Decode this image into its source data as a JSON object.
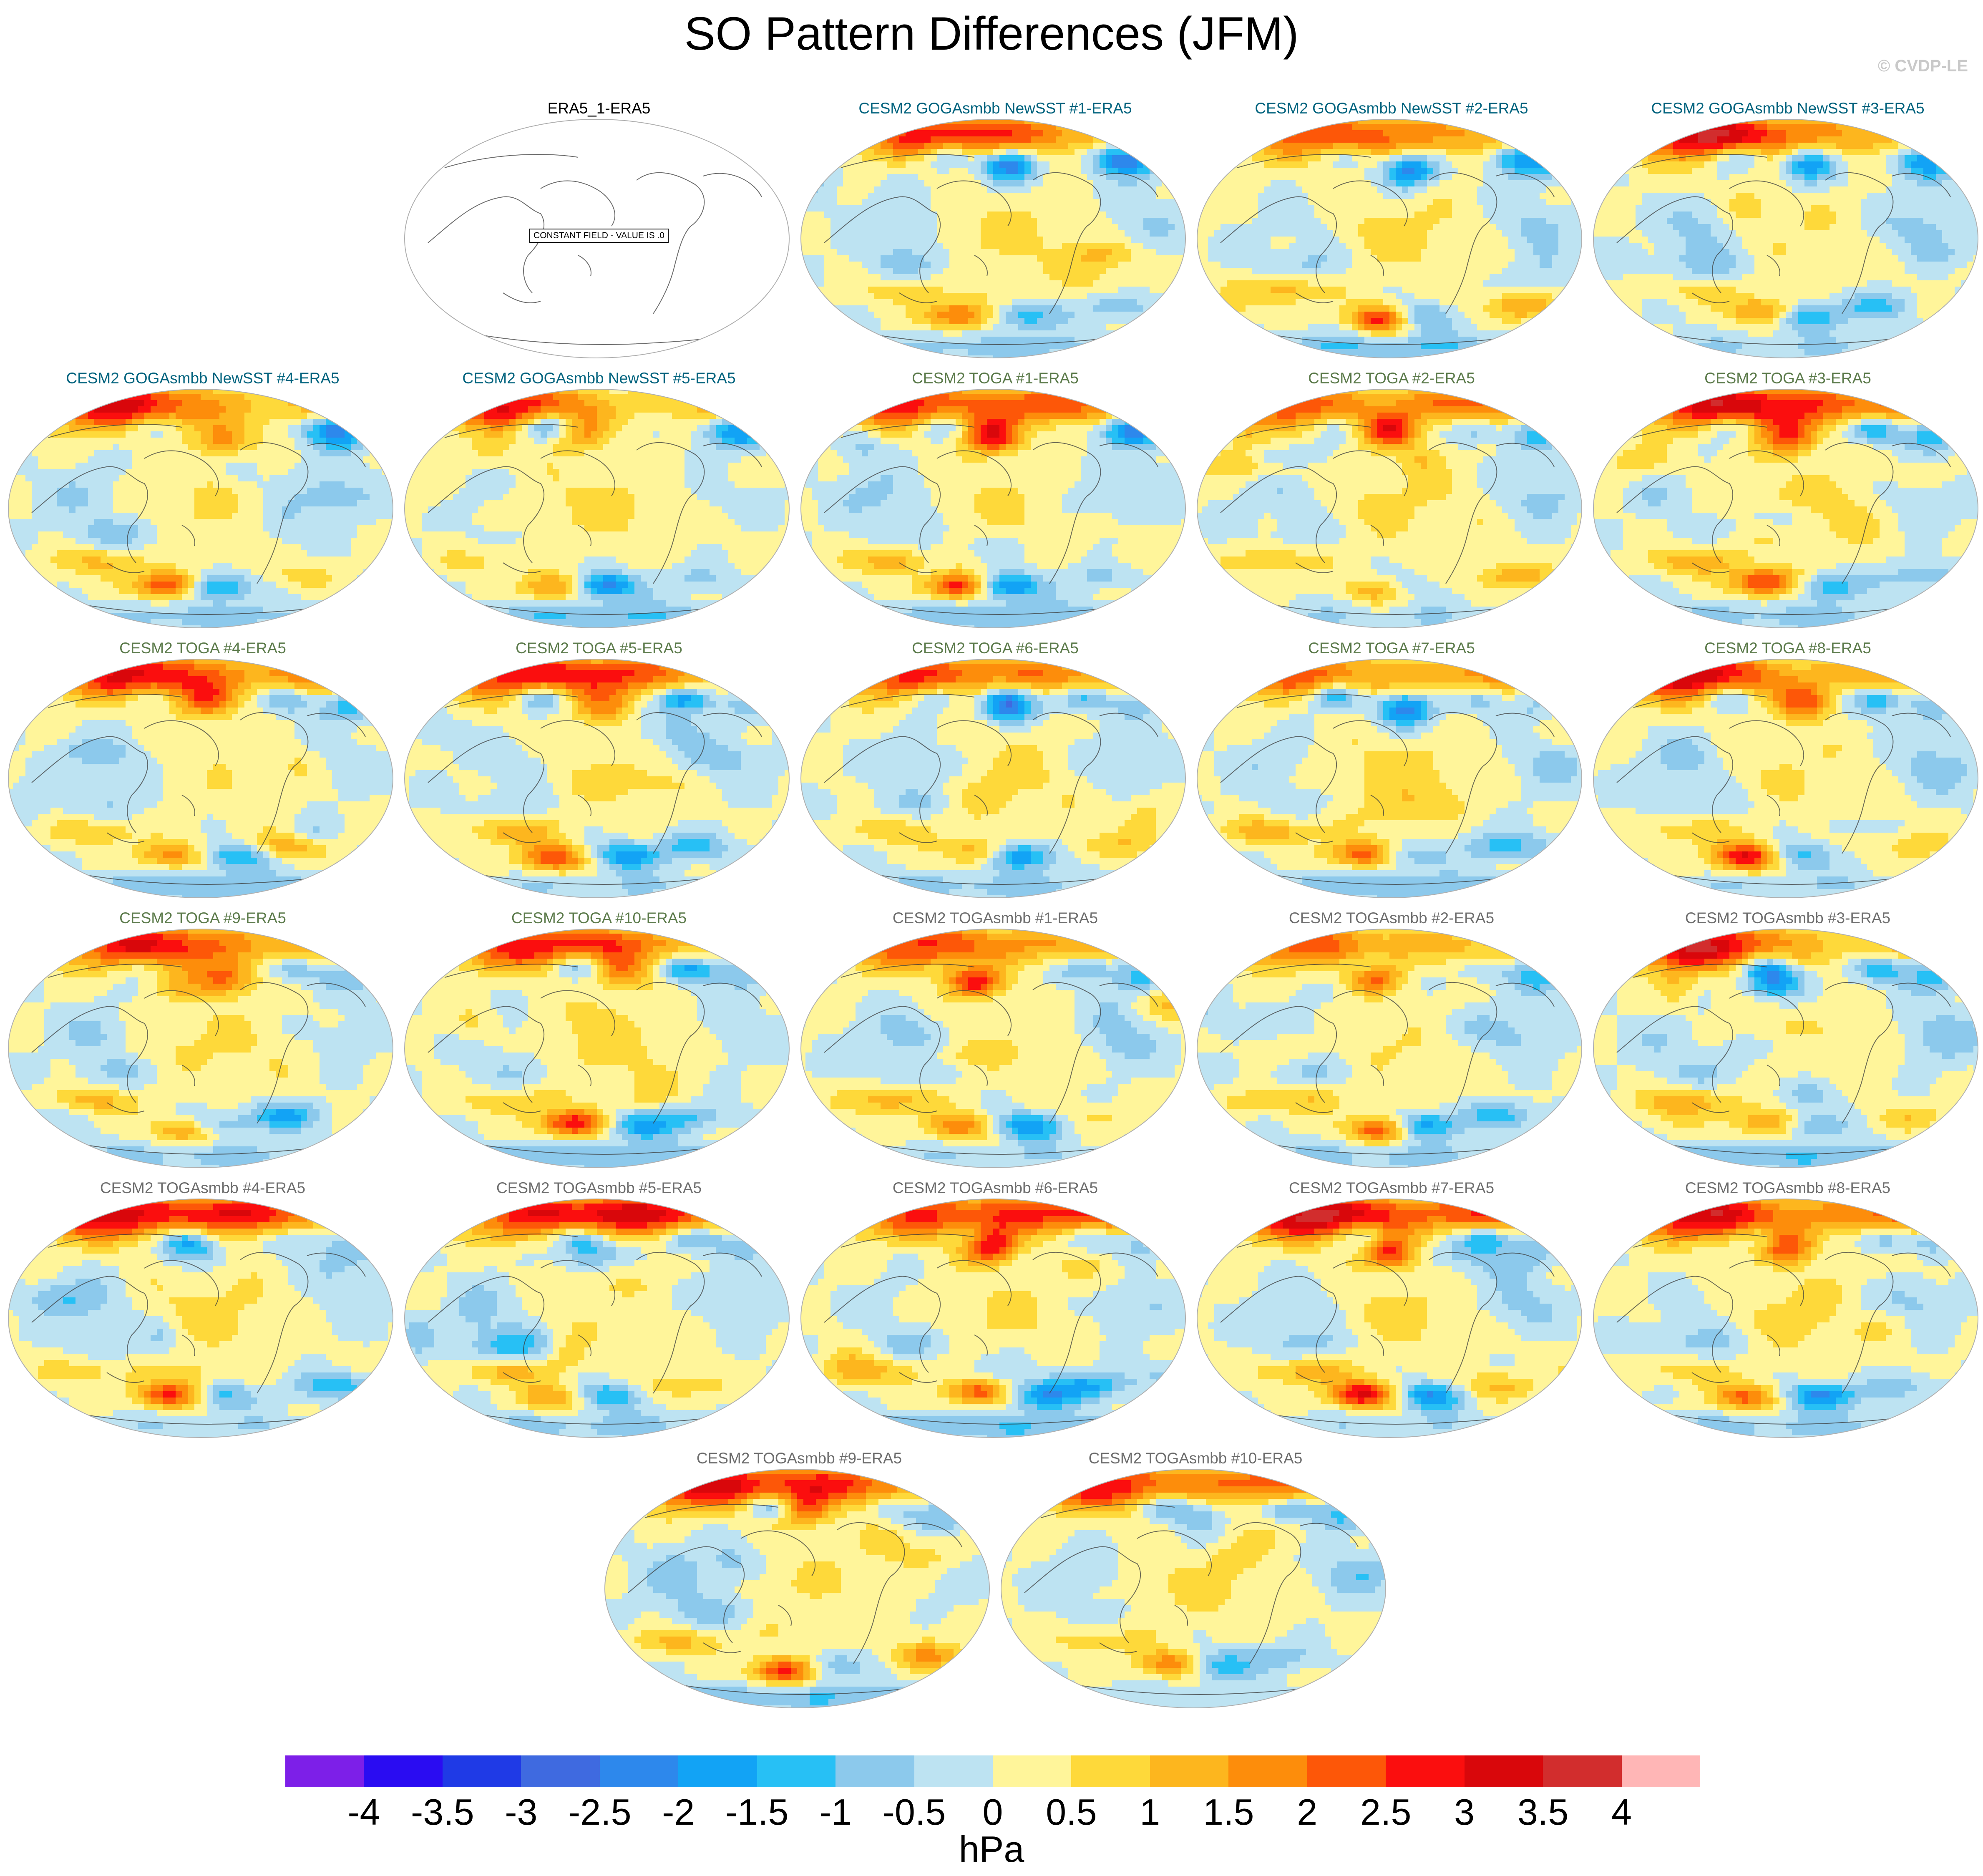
{
  "title": "SO Pattern Differences (JFM)",
  "credit": "© CVDP-LE",
  "colors": {
    "title_goga": "#00637e",
    "title_toga": "#5b7a4a",
    "title_togasmbb": "#6d6d6d",
    "title_obs": "#000000"
  },
  "panels": [
    {
      "title": "ERA5_1-ERA5",
      "group": "obs",
      "constant": true,
      "constant_label": "CONSTANT FIELD - VALUE IS .0"
    },
    {
      "title": "CESM2 GOGAsmbb NewSST #1-ERA5",
      "group": "goga",
      "seed": 11
    },
    {
      "title": "CESM2 GOGAsmbb NewSST #2-ERA5",
      "group": "goga",
      "seed": 12
    },
    {
      "title": "CESM2 GOGAsmbb NewSST #3-ERA5",
      "group": "goga",
      "seed": 13
    },
    {
      "title": "CESM2 GOGAsmbb NewSST #4-ERA5",
      "group": "goga",
      "seed": 14
    },
    {
      "title": "CESM2 GOGAsmbb NewSST #5-ERA5",
      "group": "goga",
      "seed": 15
    },
    {
      "title": "CESM2 TOGA #1-ERA5",
      "group": "toga",
      "seed": 21
    },
    {
      "title": "CESM2 TOGA #2-ERA5",
      "group": "toga",
      "seed": 22
    },
    {
      "title": "CESM2 TOGA #3-ERA5",
      "group": "toga",
      "seed": 23
    },
    {
      "title": "CESM2 TOGA #4-ERA5",
      "group": "toga",
      "seed": 24
    },
    {
      "title": "CESM2 TOGA #5-ERA5",
      "group": "toga",
      "seed": 25
    },
    {
      "title": "CESM2 TOGA #6-ERA5",
      "group": "toga",
      "seed": 26
    },
    {
      "title": "CESM2 TOGA #7-ERA5",
      "group": "toga",
      "seed": 27
    },
    {
      "title": "CESM2 TOGA #8-ERA5",
      "group": "toga",
      "seed": 28
    },
    {
      "title": "CESM2 TOGA #9-ERA5",
      "group": "toga",
      "seed": 29
    },
    {
      "title": "CESM2 TOGA #10-ERA5",
      "group": "toga",
      "seed": 30
    },
    {
      "title": "CESM2 TOGAsmbb #1-ERA5",
      "group": "togasmbb",
      "seed": 31
    },
    {
      "title": "CESM2 TOGAsmbb #2-ERA5",
      "group": "togasmbb",
      "seed": 32
    },
    {
      "title": "CESM2 TOGAsmbb #3-ERA5",
      "group": "togasmbb",
      "seed": 33
    },
    {
      "title": "CESM2 TOGAsmbb #4-ERA5",
      "group": "togasmbb",
      "seed": 34
    },
    {
      "title": "CESM2 TOGAsmbb #5-ERA5",
      "group": "togasmbb",
      "seed": 35
    },
    {
      "title": "CESM2 TOGAsmbb #6-ERA5",
      "group": "togasmbb",
      "seed": 36
    },
    {
      "title": "CESM2 TOGAsmbb #7-ERA5",
      "group": "togasmbb",
      "seed": 37
    },
    {
      "title": "CESM2 TOGAsmbb #8-ERA5",
      "group": "togasmbb",
      "seed": 38
    },
    {
      "title": "CESM2 TOGAsmbb #9-ERA5",
      "group": "togasmbb",
      "seed": 39
    },
    {
      "title": "CESM2 TOGAsmbb #10-ERA5",
      "group": "togasmbb",
      "seed": 40
    }
  ],
  "colorbar": {
    "colors": [
      "#7d1fe8",
      "#2a0cf2",
      "#1f3ae6",
      "#3f6ae0",
      "#2d88ec",
      "#12a3f5",
      "#27c0f5",
      "#8cc9ec",
      "#bde3f2",
      "#fff59a",
      "#fed93a",
      "#fdb61e",
      "#fd8d0b",
      "#fd5708",
      "#fb0e0e",
      "#d9070b",
      "#d22d2d",
      "#ffb6b6"
    ],
    "ticks": [
      "-4",
      "-3.5",
      "-3",
      "-2.5",
      "-2",
      "-1.5",
      "-1",
      "-0.5",
      "0",
      "0.5",
      "1",
      "1.5",
      "2",
      "2.5",
      "3",
      "3.5",
      "4"
    ],
    "units": "hPa"
  }
}
